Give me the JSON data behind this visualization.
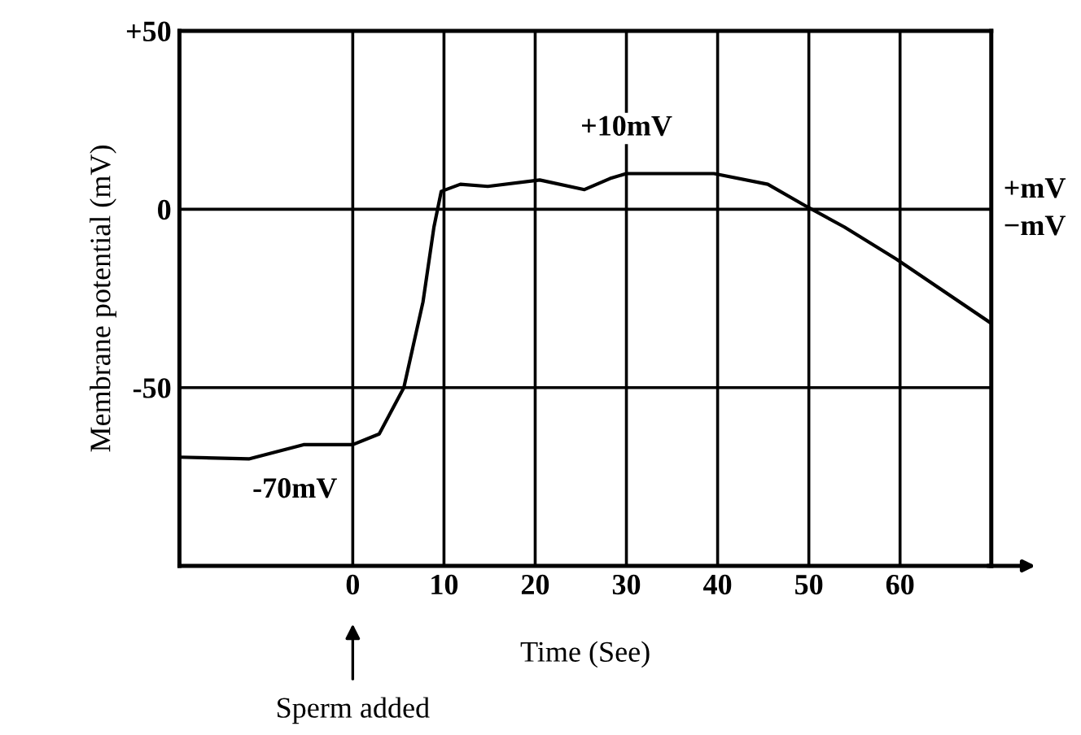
{
  "chart_data": {
    "type": "line",
    "xlabel": "Time (See)",
    "ylabel": "Membrane potential (mV)",
    "x": [
      -19,
      -11.4,
      -5.4,
      0,
      2.9,
      5.6,
      7.7,
      8.9,
      9.7,
      11.8,
      14.8,
      20.5,
      25.4,
      28.2,
      30,
      39.6,
      45.5,
      49.6,
      53.9,
      59.6,
      70
    ],
    "series": [
      {
        "color": "#000000",
        "values": [
          -69.5,
          -70,
          -66,
          -66,
          -63,
          -50,
          -26,
          -5,
          5,
          7,
          6.4,
          8.2,
          5.5,
          8.6,
          10,
          10,
          7,
          1,
          -5,
          -14,
          -32
        ]
      }
    ],
    "xlim": [
      -19,
      70
    ],
    "xticks": [
      0,
      10,
      20,
      30,
      40,
      50,
      60
    ],
    "ylim": [
      -100,
      50
    ],
    "yticks": [
      {
        "value": 50,
        "label": "+50"
      },
      0,
      -50
    ],
    "grid": true,
    "marker": "none",
    "line_style": "solid",
    "annotations": [
      {
        "text": "-70mV",
        "x": -11,
        "y": -70
      },
      {
        "text": "+10mV",
        "x": 30,
        "y": 10
      },
      "+mV",
      "−mV",
      "Sperm added"
    ]
  }
}
